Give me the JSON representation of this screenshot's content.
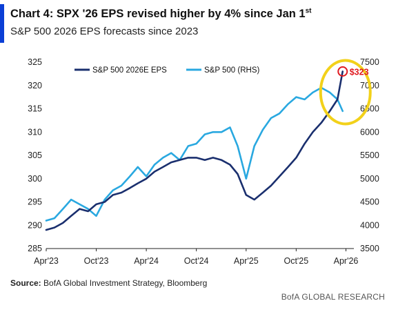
{
  "header": {
    "title_main": "Chart 4: SPX '26 EPS revised higher by 4% since Jan 1",
    "title_sup": "st",
    "subtitle": "S&P 500 2026 EPS forecasts since 2023"
  },
  "footer": {
    "source_label": "Source:",
    "source_text": " BofA Global Investment Strategy, Bloomberg",
    "brand": "BofA GLOBAL RESEARCH"
  },
  "colors": {
    "eps": "#1a2f6e",
    "spx": "#29a8e0",
    "annotation_ring": "#f2d11a",
    "annotation_marker": "#e0191f",
    "accent": "#0b3fd6"
  },
  "chart_data": {
    "type": "line",
    "x_ticks": [
      "Apr'23",
      "Oct'23",
      "Apr'24",
      "Oct'24",
      "Apr'25",
      "Oct'25",
      "Apr'26"
    ],
    "x_range": [
      "2023-04-01",
      "2026-04-30"
    ],
    "y_left": {
      "ylim": [
        285,
        325
      ],
      "ticks": [
        285,
        290,
        295,
        300,
        305,
        310,
        315,
        320,
        325
      ]
    },
    "y_right": {
      "ylim": [
        3500,
        7500
      ],
      "ticks": [
        3500,
        4000,
        4500,
        5000,
        5500,
        6000,
        6500,
        7000,
        7500
      ]
    },
    "legend_position": "top-left",
    "grid": false,
    "series": [
      {
        "name": "S&P 500 2026E EPS",
        "axis": "left",
        "points": [
          [
            "2023-04-01",
            289.0
          ],
          [
            "2023-05-01",
            289.5
          ],
          [
            "2023-06-01",
            290.5
          ],
          [
            "2023-07-01",
            292.0
          ],
          [
            "2023-08-01",
            293.5
          ],
          [
            "2023-09-01",
            293.0
          ],
          [
            "2023-10-01",
            294.5
          ],
          [
            "2023-11-01",
            295.0
          ],
          [
            "2023-12-01",
            296.5
          ],
          [
            "2024-01-01",
            297.0
          ],
          [
            "2024-02-01",
            298.0
          ],
          [
            "2024-03-01",
            299.0
          ],
          [
            "2024-04-01",
            300.0
          ],
          [
            "2024-05-01",
            301.5
          ],
          [
            "2024-06-01",
            302.5
          ],
          [
            "2024-07-01",
            303.5
          ],
          [
            "2024-08-01",
            304.0
          ],
          [
            "2024-09-01",
            304.5
          ],
          [
            "2024-10-01",
            304.5
          ],
          [
            "2024-11-01",
            304.0
          ],
          [
            "2024-12-01",
            304.5
          ],
          [
            "2025-01-01",
            304.0
          ],
          [
            "2025-02-01",
            303.0
          ],
          [
            "2025-03-01",
            301.0
          ],
          [
            "2025-04-01",
            296.5
          ],
          [
            "2025-05-01",
            295.5
          ],
          [
            "2025-06-01",
            297.0
          ],
          [
            "2025-07-01",
            298.5
          ],
          [
            "2025-08-01",
            300.5
          ],
          [
            "2025-09-01",
            302.5
          ],
          [
            "2025-10-01",
            304.5
          ],
          [
            "2025-11-01",
            307.5
          ],
          [
            "2025-12-01",
            310.0
          ],
          [
            "2026-01-01",
            312.0
          ],
          [
            "2026-02-01",
            314.5
          ],
          [
            "2026-03-01",
            317.0
          ],
          [
            "2026-03-20",
            323.0
          ]
        ]
      },
      {
        "name": "S&P 500 (RHS)",
        "axis": "right",
        "points": [
          [
            "2023-04-01",
            4100
          ],
          [
            "2023-05-01",
            4150
          ],
          [
            "2023-06-01",
            4350
          ],
          [
            "2023-07-01",
            4550
          ],
          [
            "2023-08-01",
            4450
          ],
          [
            "2023-09-01",
            4350
          ],
          [
            "2023-10-01",
            4200
          ],
          [
            "2023-11-01",
            4550
          ],
          [
            "2023-12-01",
            4750
          ],
          [
            "2024-01-01",
            4850
          ],
          [
            "2024-02-01",
            5050
          ],
          [
            "2024-03-01",
            5250
          ],
          [
            "2024-04-01",
            5050
          ],
          [
            "2024-05-01",
            5300
          ],
          [
            "2024-06-01",
            5450
          ],
          [
            "2024-07-01",
            5550
          ],
          [
            "2024-08-01",
            5400
          ],
          [
            "2024-09-01",
            5700
          ],
          [
            "2024-10-01",
            5750
          ],
          [
            "2024-11-01",
            5950
          ],
          [
            "2024-12-01",
            6000
          ],
          [
            "2025-01-01",
            6000
          ],
          [
            "2025-02-01",
            6100
          ],
          [
            "2025-03-01",
            5700
          ],
          [
            "2025-04-01",
            5000
          ],
          [
            "2025-05-01",
            5700
          ],
          [
            "2025-06-01",
            6050
          ],
          [
            "2025-07-01",
            6300
          ],
          [
            "2025-08-01",
            6400
          ],
          [
            "2025-09-01",
            6600
          ],
          [
            "2025-10-01",
            6750
          ],
          [
            "2025-11-01",
            6700
          ],
          [
            "2025-12-01",
            6850
          ],
          [
            "2026-01-01",
            6950
          ],
          [
            "2026-02-01",
            6850
          ],
          [
            "2026-03-01",
            6700
          ],
          [
            "2026-03-20",
            6450
          ]
        ]
      }
    ],
    "annotations": [
      {
        "text": "$323",
        "x": "2026-03-20",
        "y": 323.0,
        "axis": "left"
      }
    ]
  }
}
